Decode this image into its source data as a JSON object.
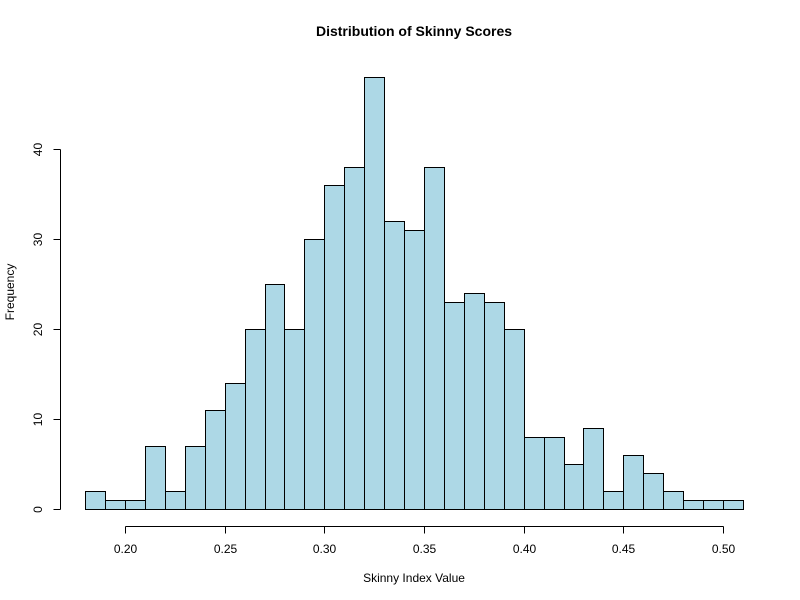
{
  "chart_data": {
    "type": "bar",
    "subtype": "histogram",
    "title": "Distribution of Skinny Scores",
    "xlabel": "Skinny Index Value",
    "ylabel": "Frequency",
    "bin_width": 0.01,
    "bin_start": 0.18,
    "bin_edges": [
      0.18,
      0.19,
      0.2,
      0.21,
      0.22,
      0.23,
      0.24,
      0.25,
      0.26,
      0.27,
      0.28,
      0.29,
      0.3,
      0.31,
      0.32,
      0.33,
      0.34,
      0.35,
      0.36,
      0.37,
      0.38,
      0.39,
      0.4,
      0.41,
      0.42,
      0.43,
      0.44,
      0.45,
      0.46,
      0.47,
      0.48,
      0.49,
      0.5,
      0.51
    ],
    "values": [
      2,
      1,
      1,
      7,
      2,
      7,
      11,
      14,
      20,
      25,
      20,
      30,
      36,
      38,
      48,
      32,
      31,
      38,
      23,
      24,
      23,
      20,
      8,
      8,
      5,
      9,
      2,
      6,
      4,
      2,
      1,
      1,
      1
    ],
    "xlim": [
      0.18,
      0.51
    ],
    "ylim": [
      0,
      48
    ],
    "x_ticks": [
      "0.20",
      "0.25",
      "0.30",
      "0.35",
      "0.40",
      "0.45",
      "0.50"
    ],
    "x_tick_values": [
      0.2,
      0.25,
      0.3,
      0.35,
      0.4,
      0.45,
      0.5
    ],
    "y_ticks": [
      "0",
      "10",
      "20",
      "30",
      "40"
    ],
    "y_tick_values": [
      0,
      10,
      20,
      30,
      40
    ],
    "bar_color": "#add8e6",
    "edge_color": "#000000",
    "grid": false,
    "legend": null
  }
}
